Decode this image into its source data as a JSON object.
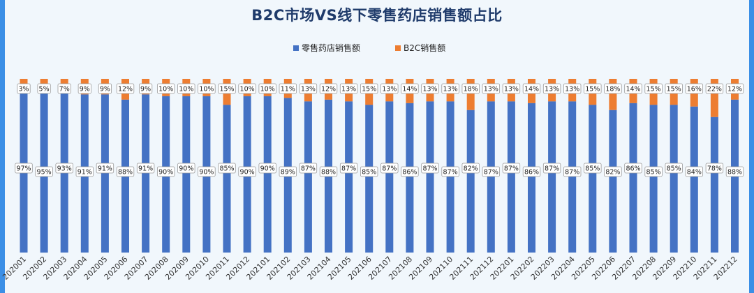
{
  "title": "B2C市场VS线下零售药店销售额占比",
  "chart_data": {
    "type": "bar",
    "stacked": true,
    "percent": true,
    "categories": [
      "202001",
      "202002",
      "202003",
      "202004",
      "202005",
      "202006",
      "202007",
      "202008",
      "202009",
      "202010",
      "202011",
      "202012",
      "202101",
      "202102",
      "202103",
      "202104",
      "202105",
      "202106",
      "202107",
      "202108",
      "202109",
      "202110",
      "202111",
      "202112",
      "202201",
      "202202",
      "202203",
      "202204",
      "202205",
      "202206",
      "202207",
      "202208",
      "202209",
      "202210",
      "202211",
      "202212"
    ],
    "series": [
      {
        "name": "零售药店销售额",
        "color": "#4472c4",
        "values": [
          97,
          95,
          93,
          91,
          91,
          88,
          91,
          90,
          90,
          90,
          85,
          90,
          90,
          89,
          87,
          88,
          87,
          85,
          87,
          86,
          87,
          87,
          82,
          87,
          87,
          86,
          87,
          87,
          85,
          82,
          86,
          85,
          85,
          84,
          78,
          88
        ]
      },
      {
        "name": "B2C销售额",
        "color": "#ed7d31",
        "values": [
          3,
          5,
          7,
          9,
          9,
          12,
          9,
          10,
          10,
          10,
          15,
          10,
          10,
          11,
          13,
          12,
          13,
          15,
          13,
          14,
          13,
          13,
          18,
          13,
          13,
          14,
          13,
          13,
          15,
          18,
          14,
          15,
          15,
          16,
          22,
          12
        ]
      }
    ],
    "ylim": [
      0,
      100
    ],
    "legend": "top-center",
    "grid": false
  }
}
